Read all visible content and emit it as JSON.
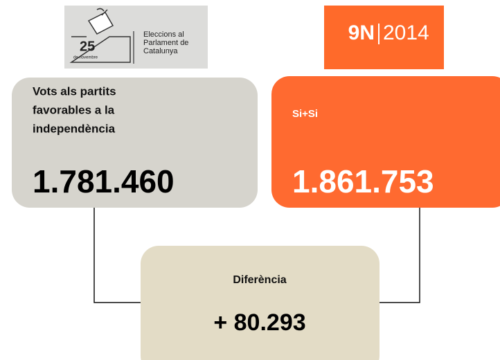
{
  "logos": {
    "left": {
      "number": "25",
      "date": "de novembre",
      "lines": [
        "Eleccions al",
        "Parlament de",
        "Catalunya"
      ]
    },
    "right": {
      "left": "9N",
      "right": "2014"
    }
  },
  "boxes": [
    {
      "label_lines": [
        "Vots als partits",
        "favorables a la",
        "independència"
      ],
      "value": "1.781.460"
    },
    {
      "label_lines": [
        "Si+Si"
      ],
      "value": "1.861.753"
    },
    {
      "label_lines": [
        "Diferència"
      ],
      "value": "+ 80.293"
    }
  ]
}
